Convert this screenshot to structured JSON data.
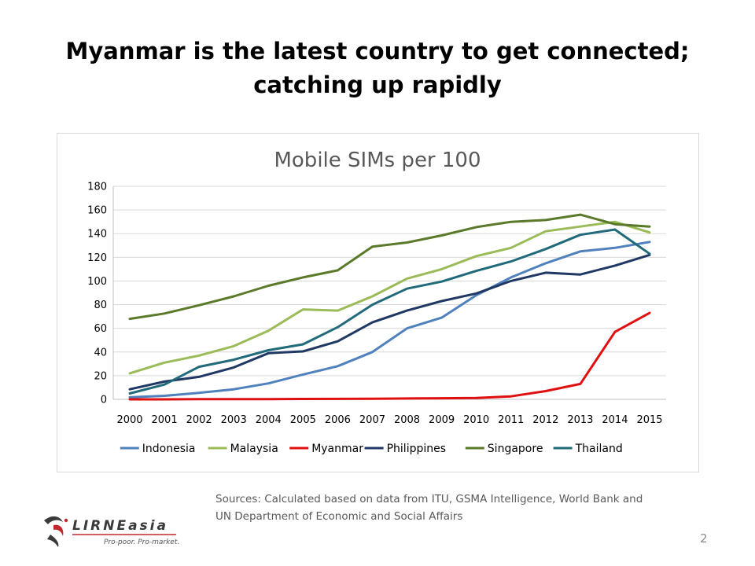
{
  "slide": {
    "title_line1": "Myanmar is the latest country to get connected;",
    "title_line2": "catching up rapidly",
    "sources_line1": "Sources: Calculated based on data from ITU, GSMA Intelligence, World Bank and",
    "sources_line2": "UN Department of Economic and Social Affairs",
    "page_number": "2",
    "logo_text": "LIRNEasia",
    "logo_tagline": "Pro-poor. Pro-market."
  },
  "chart_data": {
    "type": "line",
    "title": "Mobile SIMs per 100",
    "xlabel": "",
    "ylabel": "",
    "x": [
      "2000",
      "2001",
      "2002",
      "2003",
      "2004",
      "2005",
      "2006",
      "2007",
      "2008",
      "2009",
      "2010",
      "2011",
      "2012",
      "2013",
      "2014",
      "2015"
    ],
    "ylim": [
      0,
      180
    ],
    "yticks": [
      0,
      20,
      40,
      60,
      80,
      100,
      120,
      140,
      160,
      180
    ],
    "grid": true,
    "legend_position": "bottom",
    "series": [
      {
        "name": "Indonesia",
        "color": "#4f81bd",
        "values": [
          1.7,
          3.0,
          5.5,
          8.5,
          13.5,
          21,
          28,
          40,
          60,
          69,
          88,
          103,
          115,
          125,
          128,
          133
        ]
      },
      {
        "name": "Malaysia",
        "color": "#9bbb59",
        "values": [
          22,
          31,
          37,
          45,
          58,
          76,
          75,
          87,
          102,
          110,
          121,
          128,
          142,
          146,
          150,
          141
        ]
      },
      {
        "name": "Myanmar",
        "color": "#e01010",
        "values": [
          0,
          0,
          0.1,
          0.2,
          0.2,
          0.3,
          0.4,
          0.5,
          0.7,
          0.9,
          1.2,
          2.5,
          7,
          13,
          57,
          73
        ]
      },
      {
        "name": "Philippines",
        "color": "#1f3864",
        "values": [
          8.5,
          15,
          19,
          27,
          39,
          40.5,
          49,
          65,
          75,
          83,
          89.5,
          100,
          107,
          105.5,
          113,
          122
        ]
      },
      {
        "name": "Singapore",
        "color": "#5a7a2a",
        "values": [
          68,
          72.5,
          79.5,
          87,
          96,
          103,
          109,
          129,
          132.5,
          138.5,
          145.5,
          150,
          151.5,
          156,
          148,
          146
        ]
      },
      {
        "name": "Thailand",
        "color": "#216a7a",
        "values": [
          5,
          12.5,
          27.5,
          33.5,
          41.5,
          46.5,
          61,
          80,
          93.5,
          99.5,
          108.5,
          116.5,
          127,
          139,
          143.5,
          123
        ]
      }
    ]
  }
}
